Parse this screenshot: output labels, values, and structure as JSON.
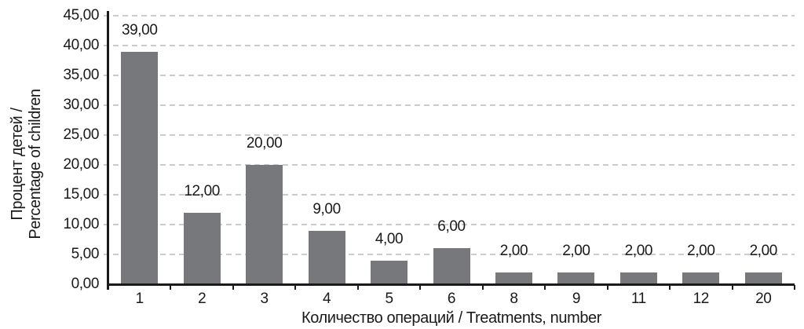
{
  "chart_data": {
    "type": "bar",
    "title": "",
    "categories": [
      "1",
      "2",
      "3",
      "4",
      "5",
      "6",
      "8",
      "9",
      "11",
      "12",
      "20"
    ],
    "values": [
      39,
      12,
      20,
      9,
      4,
      6,
      2,
      2,
      2,
      2,
      2
    ],
    "value_labels": [
      "39,00",
      "12,00",
      "20,00",
      "9,00",
      "4,00",
      "6,00",
      "2,00",
      "2,00",
      "2,00",
      "2,00",
      "2,00"
    ],
    "xlabel": "Количество операций / Treatments, number",
    "ylabel_line1": "Процент детей /",
    "ylabel_line2": "Percentage of children",
    "ylim": [
      0,
      45
    ],
    "ytick_step": 5,
    "yticks": [
      0,
      5,
      10,
      15,
      20,
      25,
      30,
      35,
      40,
      45
    ],
    "ytick_labels": [
      "0,00",
      "5,00",
      "10,00",
      "15,00",
      "20,00",
      "25,00",
      "30,00",
      "35,00",
      "40,00",
      "45,00"
    ],
    "grid": "horizontal-dashed",
    "legend": "none",
    "bar_color": "#77787b",
    "axis_color": "#1b1b1b",
    "gridline_color": "#cbcbcb",
    "text_color": "#1a1a1a",
    "decimal_separator": ","
  }
}
